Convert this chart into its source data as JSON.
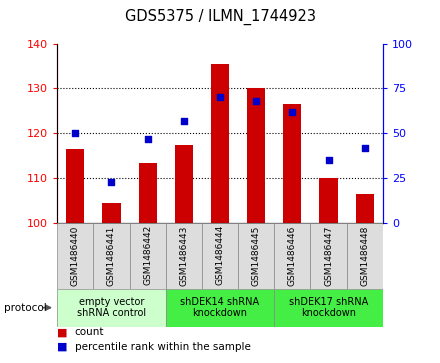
{
  "title": "GDS5375 / ILMN_1744923",
  "samples": [
    "GSM1486440",
    "GSM1486441",
    "GSM1486442",
    "GSM1486443",
    "GSM1486444",
    "GSM1486445",
    "GSM1486446",
    "GSM1486447",
    "GSM1486448"
  ],
  "counts": [
    116.5,
    104.5,
    113.5,
    117.5,
    135.5,
    130.0,
    126.5,
    110.0,
    106.5
  ],
  "percentiles": [
    50,
    23,
    47,
    57,
    70,
    68,
    62,
    35,
    42
  ],
  "ymin": 100,
  "ymax": 140,
  "yticks_left": [
    100,
    110,
    120,
    130,
    140
  ],
  "yticks_right": [
    0,
    25,
    50,
    75,
    100
  ],
  "bar_color": "#cc0000",
  "dot_color": "#0000cc",
  "bar_width": 0.5,
  "protocols": [
    {
      "label": "empty vector\nshRNA control",
      "start": 0,
      "end": 3,
      "color": "#ccffcc"
    },
    {
      "label": "shDEK14 shRNA\nknockdown",
      "start": 3,
      "end": 6,
      "color": "#44ee44"
    },
    {
      "label": "shDEK17 shRNA\nknockdown",
      "start": 6,
      "end": 9,
      "color": "#44ee44"
    }
  ],
  "legend_count_label": "count",
  "legend_percentile_label": "percentile rank within the sample",
  "protocol_label": "protocol"
}
